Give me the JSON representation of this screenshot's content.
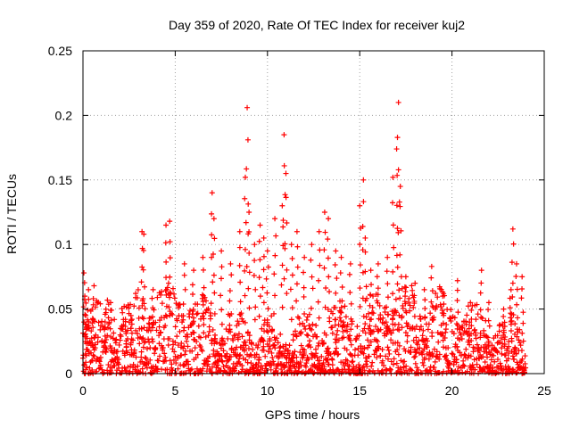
{
  "chart_data": {
    "type": "scatter",
    "title": "Day 359 of 2020, Rate Of TEC Index for receiver kuj2",
    "xlabel": "GPS time / hours",
    "ylabel": "ROTI / TECUs",
    "xlim": [
      0,
      25
    ],
    "ylim": [
      0,
      0.25
    ],
    "x_ticks": [
      "0",
      "5",
      "10",
      "15",
      "20",
      "25"
    ],
    "y_ticks": [
      "0",
      "0.05",
      "0.1",
      "0.15",
      "0.2",
      "0.25"
    ],
    "grid": true,
    "marker": "+",
    "color": "#ff0000",
    "series": [
      {
        "name": "ROTI",
        "x": [
          0.05,
          0.1,
          0.15,
          0.3,
          0.5,
          0.6,
          1.2,
          1.5,
          2.3,
          2.6,
          3.2,
          3.3,
          3.8,
          4.5,
          4.7,
          5.5,
          6.0,
          6.5,
          7.0,
          7.1,
          7.5,
          8.0,
          8.5,
          8.8,
          8.9,
          9.0,
          9.3,
          9.6,
          9.8,
          10.0,
          10.4,
          10.8,
          10.9,
          11.0,
          11.3,
          11.6,
          12.0,
          12.4,
          12.8,
          13.1,
          13.3,
          13.7,
          14.0,
          14.5,
          15.0,
          15.2,
          15.3,
          15.6,
          16.0,
          16.5,
          16.8,
          17.0,
          17.1,
          17.2,
          17.5,
          18.0,
          18.5,
          18.9,
          19.5,
          20.3,
          21.0,
          21.6,
          22.0,
          22.8,
          23.2,
          23.3,
          23.5,
          23.8
        ],
        "y": [
          0.078,
          0.06,
          0.045,
          0.065,
          0.05,
          0.068,
          0.04,
          0.055,
          0.042,
          0.035,
          0.11,
          0.108,
          0.065,
          0.115,
          0.118,
          0.085,
          0.08,
          0.09,
          0.14,
          0.12,
          0.095,
          0.085,
          0.11,
          0.152,
          0.206,
          0.125,
          0.1,
          0.115,
          0.105,
          0.095,
          0.12,
          0.13,
          0.185,
          0.155,
          0.1,
          0.11,
          0.09,
          0.1,
          0.11,
          0.125,
          0.12,
          0.095,
          0.09,
          0.085,
          0.13,
          0.15,
          0.105,
          0.08,
          0.085,
          0.09,
          0.152,
          0.174,
          0.21,
          0.145,
          0.075,
          0.07,
          0.065,
          0.083,
          0.06,
          0.072,
          0.055,
          0.08,
          0.055,
          0.05,
          0.065,
          0.112,
          0.085,
          0.075
        ]
      }
    ],
    "dense_band": {
      "x_range": [
        0,
        24
      ],
      "typical_max": 0.045,
      "min": 0.0,
      "note": "dense cloud of points from 0 to about 0.05 TECU/s across all hours"
    }
  }
}
